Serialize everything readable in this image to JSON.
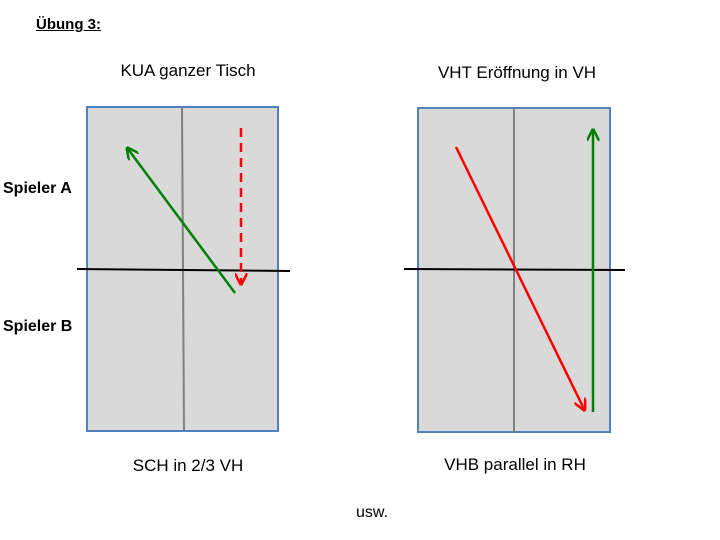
{
  "heading": "Übung 3:",
  "players": {
    "a": "Spieler A",
    "b": "Spieler B"
  },
  "tables": [
    {
      "top_label": "KUA ganzer Tisch",
      "bottom_label": "SCH in 2/3 VH"
    },
    {
      "top_label": "VHT Eröffnung in VH",
      "bottom_label": "VHB parallel in RH"
    }
  ],
  "footer": "usw.",
  "colors": {
    "table_fill": "#d9d9d9",
    "table_border": "#4f81bd",
    "center_line": "#808080",
    "net": "#000000",
    "green_arrow": "#008000",
    "red_arrow": "#ff0000"
  }
}
